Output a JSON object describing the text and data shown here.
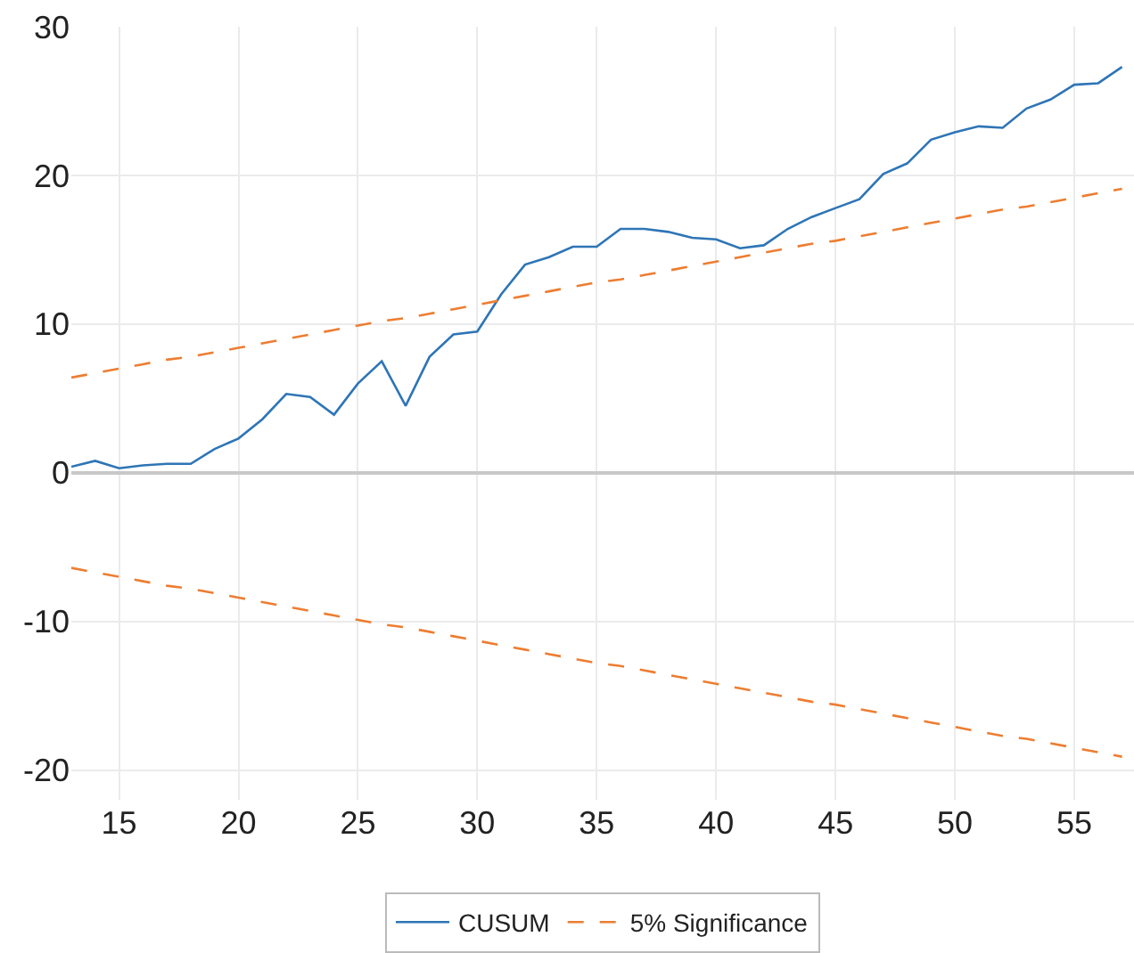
{
  "chart_data": {
    "type": "line",
    "x": [
      13,
      14,
      15,
      16,
      17,
      18,
      19,
      20,
      21,
      22,
      23,
      24,
      25,
      26,
      27,
      28,
      29,
      30,
      31,
      32,
      33,
      34,
      35,
      36,
      37,
      38,
      39,
      40,
      41,
      42,
      43,
      44,
      45,
      46,
      47,
      48,
      49,
      50,
      51,
      52,
      53,
      54,
      55,
      56,
      57
    ],
    "series": [
      {
        "name": "CUSUM",
        "color": "#2e75b6",
        "line_style": "solid",
        "values": [
          0.4,
          0.8,
          0.3,
          0.5,
          0.6,
          0.6,
          1.6,
          2.3,
          3.6,
          5.3,
          5.1,
          3.9,
          6.0,
          7.5,
          4.5,
          7.8,
          9.3,
          9.5,
          12.0,
          14.0,
          14.5,
          15.2,
          15.2,
          16.4,
          16.4,
          16.2,
          15.8,
          15.7,
          15.1,
          15.3,
          16.4,
          17.2,
          17.8,
          18.4,
          20.1,
          20.8,
          22.4,
          22.9,
          23.3,
          23.2,
          24.5,
          25.1,
          26.1,
          26.2,
          27.3
        ]
      },
      {
        "name": "5% Significance",
        "color": "#ed7d31",
        "line_style": "dashed",
        "values": [
          6.4,
          6.7,
          7.0,
          7.3,
          7.6,
          7.8,
          8.1,
          8.4,
          8.7,
          9.0,
          9.3,
          9.6,
          9.9,
          10.2,
          10.4,
          10.7,
          11.0,
          11.3,
          11.6,
          11.9,
          12.2,
          12.5,
          12.8,
          13.0,
          13.3,
          13.6,
          13.9,
          14.2,
          14.5,
          14.8,
          15.1,
          15.4,
          15.6,
          15.9,
          16.2,
          16.5,
          16.8,
          17.1,
          17.4,
          17.7,
          17.9,
          18.2,
          18.5,
          18.8,
          19.1
        ]
      },
      {
        "color": "#ed7d31",
        "line_style": "dashed",
        "values": [
          -6.4,
          -6.7,
          -7.0,
          -7.3,
          -7.6,
          -7.8,
          -8.1,
          -8.4,
          -8.7,
          -9.0,
          -9.3,
          -9.6,
          -9.9,
          -10.2,
          -10.4,
          -10.7,
          -11.0,
          -11.3,
          -11.6,
          -11.9,
          -12.2,
          -12.5,
          -12.8,
          -13.0,
          -13.3,
          -13.6,
          -13.9,
          -14.2,
          -14.5,
          -14.8,
          -15.1,
          -15.4,
          -15.6,
          -15.9,
          -16.2,
          -16.5,
          -16.8,
          -17.1,
          -17.4,
          -17.7,
          -17.9,
          -18.2,
          -18.5,
          -18.8,
          -19.1
        ]
      }
    ],
    "xlim": [
      13,
      57.5
    ],
    "ylim": [
      -22,
      30
    ],
    "xticks": [
      15,
      20,
      25,
      30,
      35,
      40,
      45,
      50,
      55
    ],
    "yticks": [
      -20,
      -10,
      0,
      10,
      20,
      30
    ],
    "grid": true,
    "legend": "bottom",
    "marker": "none"
  }
}
